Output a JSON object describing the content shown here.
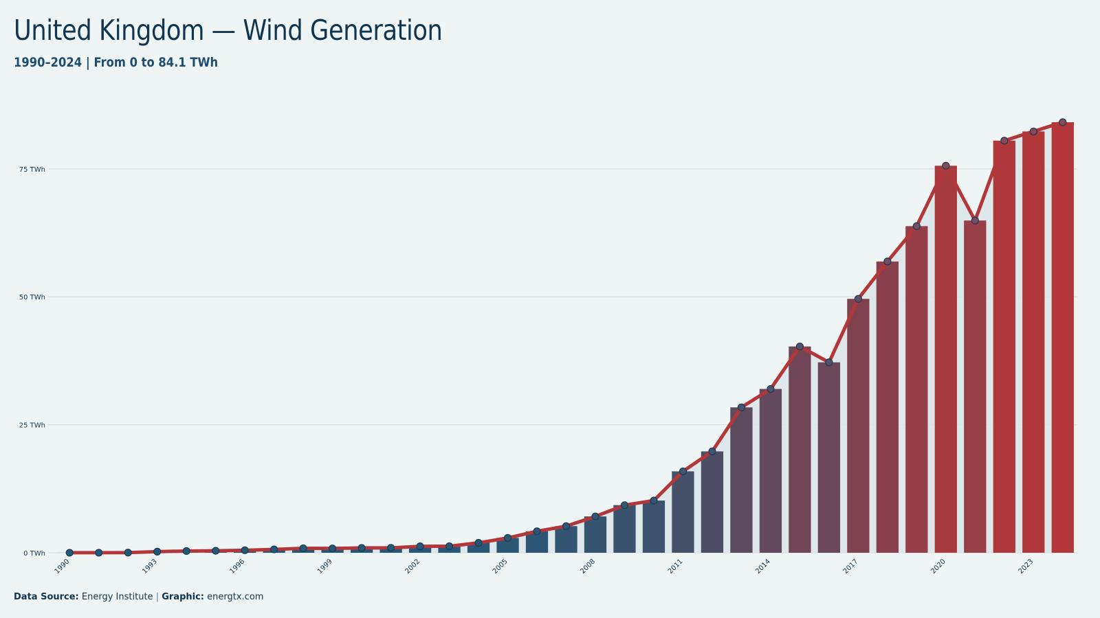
{
  "header": {
    "title": "United Kingdom — Wind Generation",
    "subtitle": "1990–2024 | From 0 to 84.1 TWh"
  },
  "footer": {
    "source_label": "Data Source:",
    "source_value": "Energy Institute",
    "separator": "|",
    "graphic_label": "Graphic:",
    "graphic_value": "energtx.com"
  },
  "colors": {
    "background": "#eff5f5",
    "grid": "#d0d9dd",
    "bar_start": "#235878",
    "bar_end": "#b3373a",
    "line": "#b3373a",
    "area_fill": "#dbe5e7",
    "text": "#0f3550"
  },
  "chart_data": {
    "type": "bar",
    "x": [
      1990,
      1991,
      1992,
      1993,
      1994,
      1995,
      1996,
      1997,
      1998,
      1999,
      2000,
      2001,
      2002,
      2003,
      2004,
      2005,
      2006,
      2007,
      2008,
      2009,
      2010,
      2011,
      2012,
      2013,
      2014,
      2015,
      2016,
      2017,
      2018,
      2019,
      2020,
      2021,
      2022,
      2023,
      2024
    ],
    "values": [
      0.01,
      0.01,
      0.03,
      0.22,
      0.34,
      0.39,
      0.49,
      0.66,
      0.88,
      0.85,
      0.95,
      0.96,
      1.26,
      1.28,
      1.94,
      2.9,
      4.2,
      5.2,
      7.1,
      9.3,
      10.2,
      15.9,
      19.8,
      28.4,
      32.0,
      40.3,
      37.2,
      49.6,
      56.9,
      63.8,
      75.6,
      64.9,
      80.5,
      82.3,
      84.1
    ],
    "x_tick_labels": [
      "1990",
      "1993",
      "1996",
      "1999",
      "2002",
      "2005",
      "2008",
      "2011",
      "2014",
      "2017",
      "2020",
      "2023"
    ],
    "y_ticks": [
      0,
      25,
      50,
      75
    ],
    "y_tick_labels": [
      "0 TWh",
      "25 TWh",
      "50 TWh",
      "75 TWh"
    ],
    "ylim": [
      0,
      84.1
    ],
    "unit": "TWh",
    "overlay": "line",
    "grid": true,
    "legend": "none"
  }
}
